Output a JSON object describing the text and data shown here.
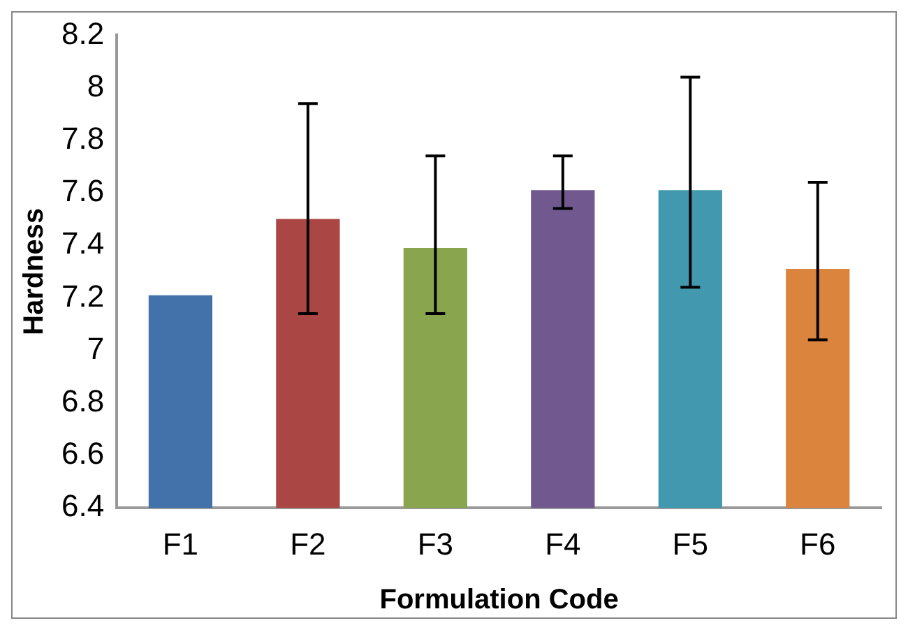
{
  "chart_data": {
    "type": "bar",
    "xlabel": "Formulation Code",
    "ylabel": "Hardness",
    "categories": [
      "F1",
      "F2",
      "F3",
      "F4",
      "F5",
      "F6"
    ],
    "values": [
      7.21,
      7.5,
      7.39,
      7.61,
      7.61,
      7.31
    ],
    "colors": [
      "#4372ab",
      "#aa4643",
      "#89a54e",
      "#71588f",
      "#4198af",
      "#db843d"
    ],
    "errors": [
      null,
      [
        7.14,
        7.94
      ],
      [
        7.14,
        7.74
      ],
      [
        7.54,
        7.74
      ],
      [
        7.24,
        8.04
      ],
      [
        7.04,
        7.64
      ]
    ],
    "ylim": [
      6.4,
      8.2
    ],
    "yticks": [
      6.4,
      6.6,
      6.8,
      7,
      7.2,
      7.4,
      7.6,
      7.8,
      8,
      8.2
    ],
    "grid": false,
    "legend": false
  }
}
